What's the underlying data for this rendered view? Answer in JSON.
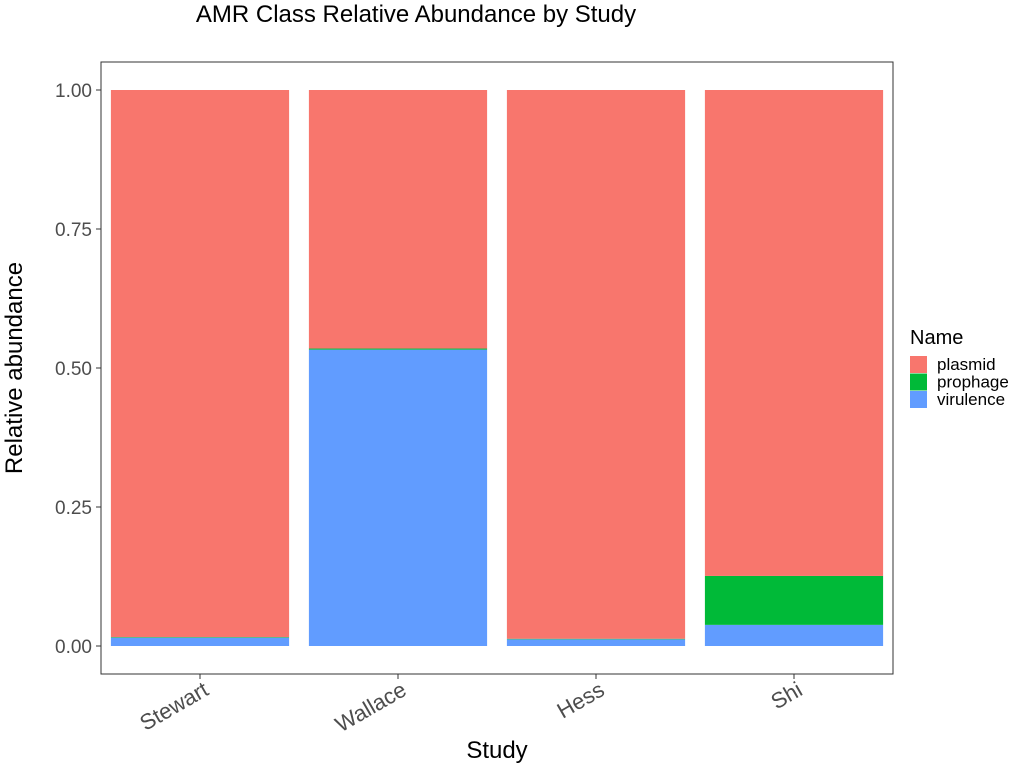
{
  "chart_data": {
    "type": "bar",
    "stacked": true,
    "title": "AMR Class Relative Abundance by Study",
    "xlabel": "Study",
    "ylabel": "Relative abundance",
    "categories": [
      "Stewart",
      "Wallace",
      "Hess",
      "Shi"
    ],
    "series": [
      {
        "name": "virulence",
        "color": "#619CFF",
        "values": [
          0.015,
          0.533,
          0.012,
          0.038
        ]
      },
      {
        "name": "prophage",
        "color": "#00BA38",
        "values": [
          0.001,
          0.002,
          0.001,
          0.088
        ]
      },
      {
        "name": "plasmid",
        "color": "#F8766D",
        "values": [
          0.984,
          0.465,
          0.987,
          0.874
        ]
      }
    ],
    "ylim": [
      0,
      1
    ],
    "yticks": [
      0,
      0.25,
      0.5,
      0.75,
      1
    ],
    "ytick_labels": [
      "0.00",
      "0.25",
      "0.50",
      "0.75",
      "1.00"
    ],
    "grid": false,
    "legend": {
      "title": "Name",
      "position": "right",
      "entries": [
        {
          "label": "plasmid",
          "color": "#F8766D"
        },
        {
          "label": "prophage",
          "color": "#00BA38"
        },
        {
          "label": "virulence",
          "color": "#619CFF"
        }
      ]
    }
  }
}
